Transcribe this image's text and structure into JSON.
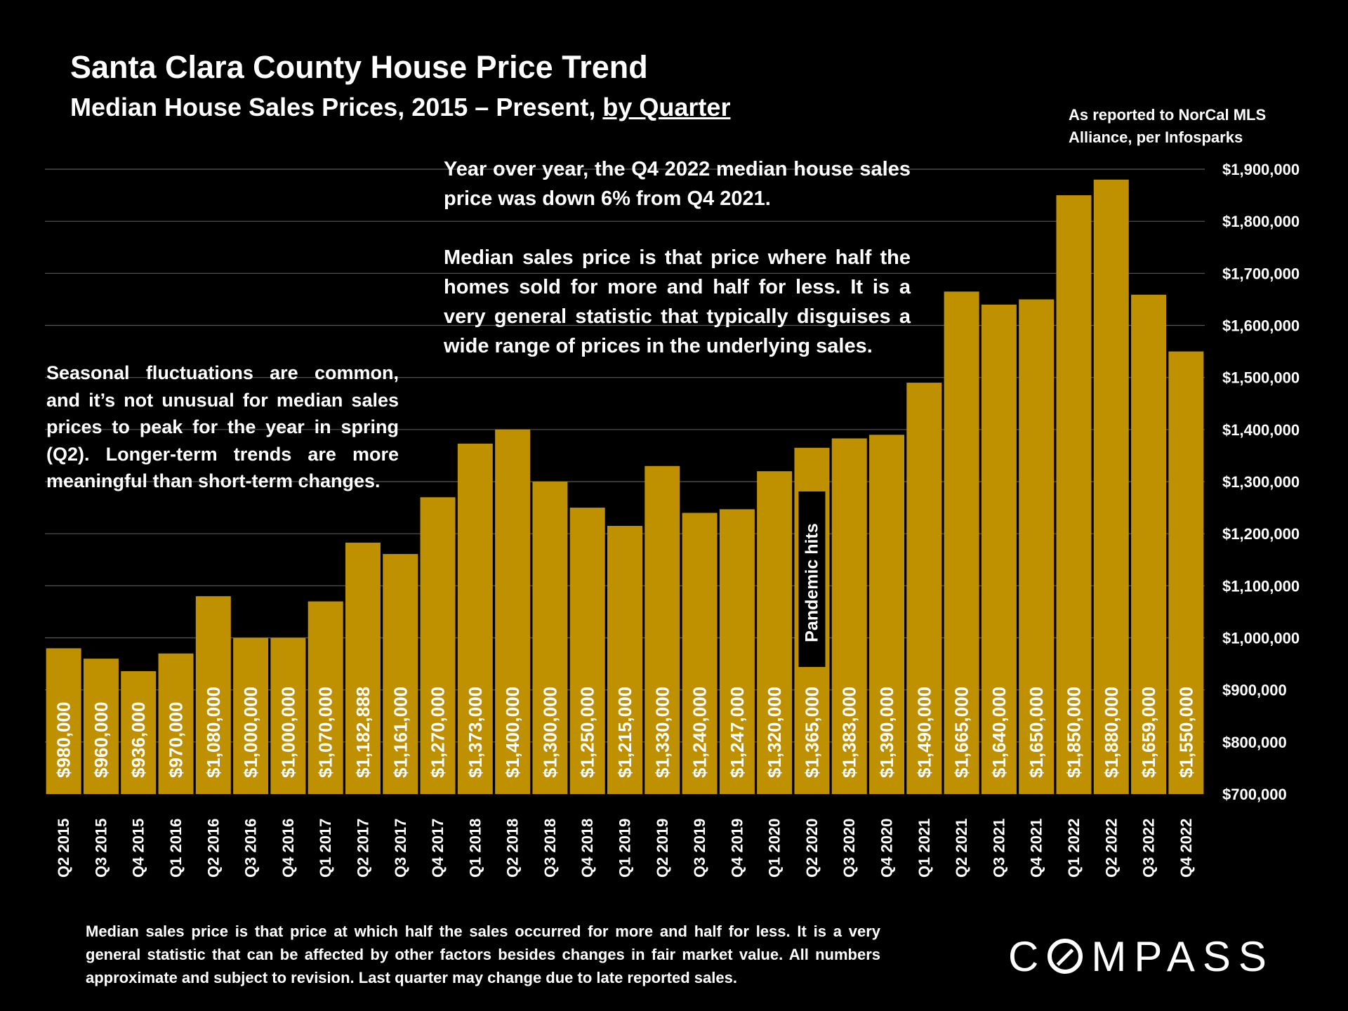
{
  "header": {
    "title": "Santa Clara County House Price Trend",
    "subtitle_main": "Median House Sales Prices, 2015 – Present, ",
    "subtitle_underlined": "by Quarter"
  },
  "source_note": "As reported to NorCal MLS Alliance, per Infosparks",
  "annotations": {
    "left": "Seasonal fluctuations are common, and it’s not unusual for median sales prices to peak for the year in spring (Q2). Longer-term trends are more meaningful than short-term changes.",
    "top_p1": "Year over year, the Q4 2022 median house sales price was down 6% from Q4 2021.",
    "top_p2": "Median sales price is that price where half the homes sold for more and half for less. It is a very general statistic that typically disguises a wide range of prices in the underlying sales."
  },
  "footnote": "Median sales price is that price at which half the sales occurred for more and half for less. It is a very general statistic that can be affected by other factors besides changes in fair market value. All numbers approximate and subject to revision. Last quarter may change due to late reported sales.",
  "logo": {
    "pre": "C",
    "post": "MPASS"
  },
  "colors": {
    "bar": "#BF9000",
    "background": "#000000",
    "grid": "#595959",
    "text": "#FFFFFF"
  },
  "chart_data": {
    "type": "bar",
    "title": "Santa Clara County House Price Trend",
    "subtitle": "Median House Sales Prices, 2015 – Present, by Quarter",
    "categories": [
      "Q2 2015",
      "Q3 2015",
      "Q4 2015",
      "Q1 2016",
      "Q2 2016",
      "Q3 2016",
      "Q4 2016",
      "Q1 2017",
      "Q2 2017",
      "Q3 2017",
      "Q4 2017",
      "Q1 2018",
      "Q2 2018",
      "Q3 2018",
      "Q4 2018",
      "Q1 2019",
      "Q2 2019",
      "Q3 2019",
      "Q4 2019",
      "Q1 2020",
      "Q2 2020",
      "Q3 2020",
      "Q4 2020",
      "Q1 2021",
      "Q2 2021",
      "Q3 2021",
      "Q4 2021",
      "Q1 2022",
      "Q2 2022",
      "Q3 2022",
      "Q4 2022"
    ],
    "values": [
      980000,
      960000,
      936000,
      970000,
      1080000,
      1000000,
      1000000,
      1070000,
      1182888,
      1161000,
      1270000,
      1373000,
      1400000,
      1300000,
      1250000,
      1215000,
      1330000,
      1240000,
      1247000,
      1320000,
      1365000,
      1383000,
      1390000,
      1490000,
      1665000,
      1640000,
      1650000,
      1850000,
      1880000,
      1659000,
      1550000
    ],
    "data_labels": [
      "$980,000",
      "$960,000",
      "$936,000",
      "$970,000",
      "$1,080,000",
      "$1,000,000",
      "$1,000,000",
      "$1,070,000",
      "$1,182,888",
      "$1,161,000",
      "$1,270,000",
      "$1,373,000",
      "$1,400,000",
      "$1,300,000",
      "$1,250,000",
      "$1,215,000",
      "$1,330,000",
      "$1,240,000",
      "$1,247,000",
      "$1,320,000",
      "$1,365,000",
      "$1,383,000",
      "$1,390,000",
      "$1,490,000",
      "$1,665,000",
      "$1,640,000",
      "$1,650,000",
      "$1,850,000",
      "$1,880,000",
      "$1,659,000",
      "$1,550,000"
    ],
    "ylim": [
      700000,
      1900000
    ],
    "y_ticks": [
      1900000,
      1800000,
      1700000,
      1600000,
      1500000,
      1400000,
      1300000,
      1200000,
      1100000,
      1000000,
      900000,
      800000,
      700000
    ],
    "y_tick_labels": [
      "$1,900,000",
      "$1,800,000",
      "$1,700,000",
      "$1,600,000",
      "$1,500,000",
      "$1,400,000",
      "$1,300,000",
      "$1,200,000",
      "$1,100,000",
      "$1,000,000",
      "$900,000",
      "$800,000",
      "$700,000"
    ],
    "y_axis_position": "right",
    "grid": true,
    "annotation": {
      "text": "Pandemic hits",
      "category": "Q2 2020"
    }
  }
}
